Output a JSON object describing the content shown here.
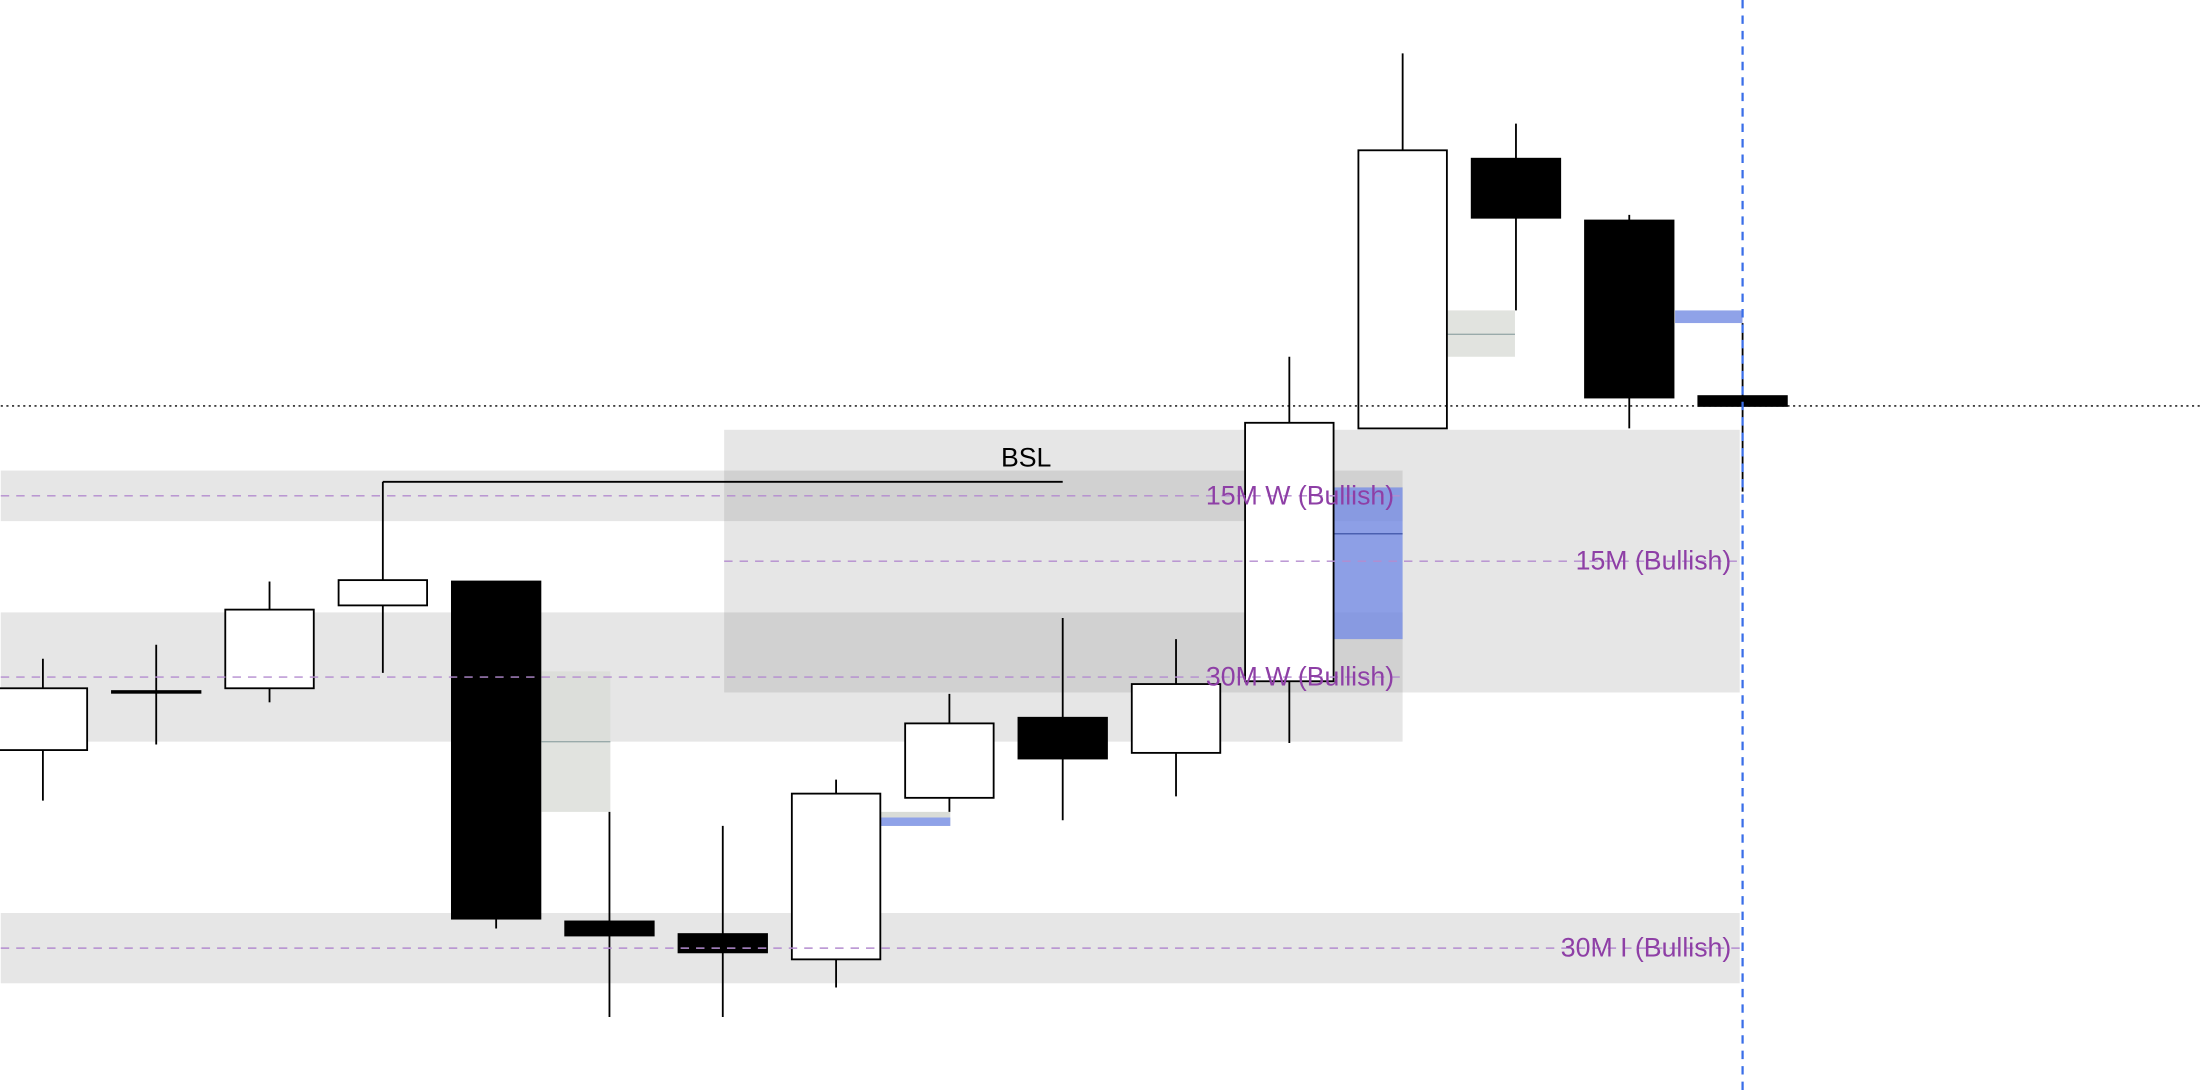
{
  "chart_data": {
    "type": "candlestick",
    "open": [
      24.2,
      28.4,
      28.6,
      34.5,
      36.2,
      12.0,
      11.1,
      9.3,
      20.8,
      26.5,
      24.0,
      29.1,
      47.1,
      66.3,
      61.9,
      49.4
    ],
    "high": [
      30.7,
      31.7,
      36.2,
      43.3,
      36.2,
      19.8,
      18.8,
      22.1,
      28.2,
      33.6,
      32.1,
      52.2,
      73.8,
      68.8,
      62.3,
      54.6
    ],
    "low": [
      20.6,
      24.6,
      27.6,
      29.7,
      11.5,
      5.2,
      5.2,
      7.3,
      19.8,
      19.2,
      20.9,
      24.7,
      47.1,
      55.5,
      47.1,
      42.6
    ],
    "close": [
      28.6,
      28.4,
      34.2,
      36.3,
      12.2,
      11.0,
      9.8,
      21.1,
      26.1,
      23.6,
      28.9,
      47.5,
      66.9,
      62.1,
      49.3,
      48.7
    ],
    "ylim": [
      0,
      77.6
    ],
    "zones": [
      {
        "label": "15M W (Bullish)",
        "top": 44.1,
        "bottom": 40.5
      },
      {
        "label": "15M (Bullish)",
        "top": 47.0,
        "bottom": 28.3
      },
      {
        "label": "30M W (Bullish)",
        "top": 34.0,
        "bottom": 24.8
      },
      {
        "label": "30M I (Bullish)",
        "top": 12.6,
        "bottom": 7.6
      }
    ],
    "bsl": {
      "label": "BSL",
      "level": 43.3
    }
  }
}
